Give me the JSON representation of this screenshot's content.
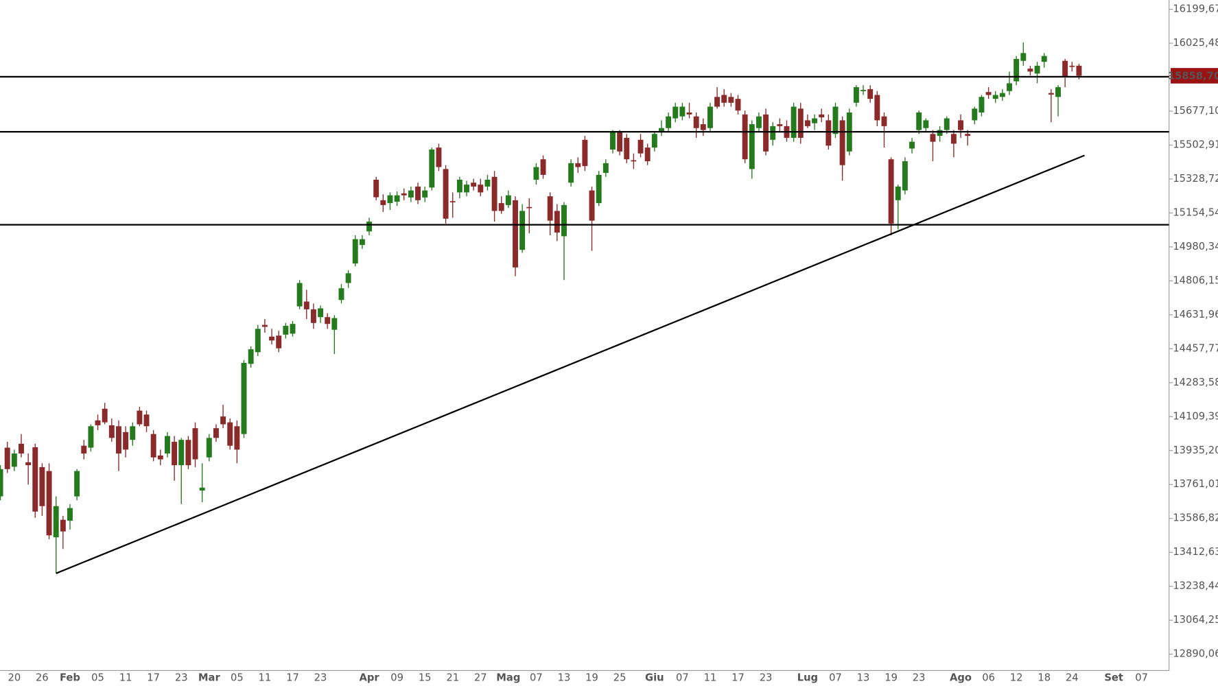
{
  "chart_data": {
    "type": "candlestick",
    "categories": [
      null,
      null,
      "20",
      null,
      null,
      null,
      "26",
      null,
      null,
      null,
      "Feb",
      null,
      null,
      null,
      "05",
      null,
      null,
      null,
      "11",
      null,
      null,
      null,
      "17",
      null,
      null,
      null,
      "23",
      null,
      null,
      null,
      "Mar",
      null,
      null,
      null,
      "05",
      null,
      null,
      null,
      "11",
      null,
      null,
      null,
      "17",
      null,
      null,
      null,
      "23",
      null,
      null,
      null,
      null,
      null,
      null,
      "Apr",
      null,
      null,
      null,
      "09",
      null,
      null,
      null,
      "15",
      null,
      null,
      null,
      "21",
      null,
      null,
      null,
      "27",
      null,
      null,
      null,
      "Mag",
      null,
      null,
      null,
      "07",
      null,
      null,
      null,
      "13",
      null,
      null,
      null,
      "19",
      null,
      null,
      null,
      "25",
      null,
      null,
      null,
      null,
      "Giu",
      null,
      null,
      null,
      "07",
      null,
      null,
      null,
      "11",
      null,
      null,
      null,
      "17",
      null,
      null,
      null,
      "23",
      null,
      null,
      null,
      null,
      null,
      "Lug",
      null,
      null,
      null,
      "07",
      null,
      null,
      null,
      "13",
      null,
      null,
      null,
      "19",
      null,
      null,
      null,
      "23",
      null,
      null,
      null,
      null,
      null,
      "Ago",
      null,
      null,
      null,
      "06",
      null,
      null,
      null,
      "12",
      null,
      null,
      null,
      "18",
      null,
      null,
      null,
      "24",
      null,
      null,
      null,
      null,
      null,
      "Set",
      null,
      null,
      null,
      "07",
      null,
      null,
      null
    ],
    "open": [
      13700,
      13950,
      13852,
      13970,
      13875,
      13952,
      13850,
      13830,
      13490,
      13580,
      13575,
      13700,
      13960,
      13950,
      14090,
      14150,
      14065,
      14060,
      14030,
      13990,
      14140,
      14120,
      14020,
      13910,
      13920,
      13980,
      13860,
      13990,
      14050,
      13730,
      13900,
      14050,
      14110,
      14080,
      14060,
      14020,
      14380,
      14440,
      14580,
      14520,
      14525,
      14530,
      14535,
      14675,
      14700,
      14660,
      14620,
      14620,
      14555,
      14708,
      14795,
      14895,
      14990,
      15060,
      15325,
      15220,
      15205,
      15212,
      15255,
      15234,
      15290,
      15234,
      15285,
      15490,
      15380,
      15215,
      15260,
      15260,
      15310,
      15300,
      15290,
      15340,
      15205,
      15195,
      15220,
      14965,
      15185,
      15325,
      15430,
      15240,
      15165,
      15035,
      15310,
      15410,
      15530,
      15270,
      15205,
      15360,
      15480,
      15570,
      15540,
      15425,
      15530,
      15490,
      15490,
      15570,
      15590,
      15640,
      15650,
      15670,
      15650,
      15610,
      15590,
      15750,
      15760,
      15750,
      15740,
      15660,
      15380,
      15590,
      15660,
      15530,
      15610,
      15600,
      15540,
      15690,
      15630,
      15615,
      15660,
      15630,
      15560,
      15630,
      15470,
      15720,
      15780,
      15790,
      15760,
      15650,
      15430,
      15220,
      15270,
      15485,
      15580,
      15590,
      15560,
      15550,
      15580,
      15560,
      15630,
      15560,
      15630,
      15670,
      15775,
      15740,
      15750,
      15780,
      15830,
      15935,
      15895,
      15870,
      15930,
      15770,
      15750,
      15935,
      15910,
      15910,
      null,
      null,
      null,
      null,
      null,
      null,
      null,
      null,
      null,
      null,
      null,
      null
    ],
    "high": [
      13860,
      13980,
      13940,
      14020,
      13920,
      13970,
      13870,
      13870,
      13700,
      13600,
      13660,
      13840,
      13990,
      14070,
      14120,
      14180,
      14100,
      14090,
      14060,
      14080,
      14160,
      14140,
      14040,
      13940,
      14030,
      14010,
      14000,
      14010,
      14080,
      13870,
      14020,
      14070,
      14170,
      14100,
      14090,
      14400,
      14470,
      14580,
      14610,
      14560,
      14550,
      14590,
      14600,
      14810,
      14760,
      14690,
      14680,
      14640,
      14630,
      14790,
      14860,
      15040,
      15040,
      15130,
      15340,
      15250,
      15260,
      15265,
      15280,
      15290,
      15310,
      15290,
      15490,
      15510,
      15400,
      15260,
      15340,
      15320,
      15330,
      15330,
      15350,
      15370,
      15240,
      15270,
      15240,
      15200,
      15230,
      15410,
      15450,
      15260,
      15200,
      15210,
      15430,
      15440,
      15550,
      15290,
      15370,
      15430,
      15580,
      15580,
      15560,
      15460,
      15560,
      15510,
      15570,
      15630,
      15670,
      15720,
      15720,
      15720,
      15670,
      15640,
      15720,
      15800,
      15790,
      15770,
      15760,
      15680,
      15630,
      15670,
      15690,
      15620,
      15640,
      15630,
      15720,
      15720,
      15660,
      15660,
      15690,
      15660,
      15720,
      15650,
      15690,
      15810,
      15810,
      15810,
      15780,
      15670,
      15440,
      15300,
      15440,
      15540,
      15680,
      15640,
      15580,
      15600,
      15650,
      15580,
      15660,
      15580,
      15700,
      15760,
      15800,
      15780,
      15790,
      15880,
      15960,
      16030,
      15910,
      15930,
      15975,
      15790,
      15810,
      15945,
      15930,
      15920,
      null,
      null,
      null,
      null,
      null,
      null,
      null,
      null,
      null,
      null,
      null,
      null
    ],
    "low": [
      13680,
      13820,
      13830,
      13900,
      13760,
      13590,
      13600,
      13480,
      13305,
      13430,
      13530,
      13680,
      13890,
      13930,
      14040,
      14070,
      13980,
      13830,
      13900,
      13960,
      14060,
      14030,
      13880,
      13860,
      13900,
      13780,
      13660,
      13840,
      13850,
      13670,
      13880,
      13980,
      14050,
      13940,
      13870,
      14000,
      14360,
      14420,
      14540,
      14480,
      14440,
      14510,
      14520,
      14660,
      14610,
      14560,
      14590,
      14560,
      14430,
      14690,
      14770,
      14880,
      14970,
      15040,
      15220,
      15160,
      15170,
      15190,
      15220,
      15210,
      15200,
      15210,
      15270,
      15370,
      15100,
      15130,
      15230,
      15240,
      15270,
      15240,
      15270,
      15110,
      15150,
      15180,
      14830,
      14950,
      15050,
      15300,
      15330,
      15040,
      15010,
      14810,
      15290,
      15360,
      15370,
      14960,
      15190,
      15340,
      15460,
      15450,
      15410,
      15380,
      15440,
      15400,
      15470,
      15550,
      15570,
      15620,
      15630,
      15640,
      15540,
      15550,
      15570,
      15690,
      15700,
      15700,
      15660,
      15410,
      15330,
      15570,
      15450,
      15500,
      15570,
      15520,
      15520,
      15510,
      15590,
      15580,
      15620,
      15480,
      15540,
      15320,
      15450,
      15700,
      15760,
      15720,
      15600,
      15490,
      15040,
      15070,
      15250,
      15460,
      15560,
      15570,
      15420,
      15520,
      15560,
      15440,
      15540,
      15500,
      15610,
      15650,
      15740,
      15720,
      15730,
      15760,
      15810,
      15910,
      15860,
      15820,
      15900,
      15620,
      15650,
      15800,
      15880,
      15840,
      null,
      null,
      null,
      null,
      null,
      null,
      null,
      null,
      null,
      null,
      null,
      null
    ],
    "close": [
      13840,
      13840,
      13920,
      13920,
      13860,
      13622,
      13650,
      13500,
      13650,
      13520,
      13640,
      13830,
      13920,
      14060,
      14065,
      14080,
      14000,
      13920,
      13940,
      14060,
      14070,
      14060,
      13900,
      13890,
      14010,
      13860,
      13990,
      13860,
      13890,
      13745,
      14000,
      14000,
      14070,
      13960,
      13940,
      14385,
      14455,
      14560,
      14570,
      14500,
      14460,
      14575,
      14585,
      14795,
      14660,
      14590,
      14665,
      14585,
      14615,
      14768,
      14845,
      15020,
      15020,
      15110,
      15235,
      15195,
      15245,
      15245,
      15245,
      15270,
      15220,
      15270,
      15480,
      15390,
      15125,
      15210,
      15325,
      15300,
      15290,
      15260,
      15325,
      15165,
      15165,
      15245,
      14875,
      15165,
      15180,
      15390,
      15350,
      15115,
      15054,
      15195,
      15410,
      15390,
      15395,
      15115,
      15350,
      15410,
      15570,
      15470,
      15430,
      15420,
      15460,
      15420,
      15560,
      15590,
      15650,
      15700,
      15700,
      15660,
      15590,
      15580,
      15700,
      15700,
      15720,
      15720,
      15680,
      15430,
      15610,
      15650,
      15470,
      15600,
      15600,
      15540,
      15700,
      15540,
      15600,
      15640,
      15645,
      15500,
      15700,
      15400,
      15670,
      15800,
      15786,
      15740,
      15630,
      15600,
      15100,
      15290,
      15420,
      15520,
      15670,
      15630,
      15520,
      15580,
      15640,
      15510,
      15580,
      15550,
      15690,
      15750,
      15760,
      15760,
      15770,
      15820,
      15945,
      15975,
      15880,
      15910,
      15960,
      15762,
      15800,
      15855,
      15905,
      15858.7,
      null,
      null,
      null,
      null,
      null,
      null,
      null,
      null,
      null,
      null,
      null,
      null
    ],
    "up_color": "#267a1e",
    "down_color": "#8b2a2a",
    "ylim": [
      12806.4,
      16247.4
    ],
    "yticks": [
      {
        "value": 16199.67,
        "label": "16199,67"
      },
      {
        "value": 16025.48,
        "label": "16025,48"
      },
      {
        "value": 15677.1,
        "label": "15677,10"
      },
      {
        "value": 15502.91,
        "label": "15502,91"
      },
      {
        "value": 15328.72,
        "label": "15328,72"
      },
      {
        "value": 15154.54,
        "label": "15154,54"
      },
      {
        "value": 14980.34,
        "label": "14980,34"
      },
      {
        "value": 14806.15,
        "label": "14806,15"
      },
      {
        "value": 14631.96,
        "label": "14631,96"
      },
      {
        "value": 14457.77,
        "label": "14457,77"
      },
      {
        "value": 14283.58,
        "label": "14283,58"
      },
      {
        "value": 14109.39,
        "label": "14109,39"
      },
      {
        "value": 13935.2,
        "label": "13935,20"
      },
      {
        "value": 13761.01,
        "label": "13761,01"
      },
      {
        "value": 13586.82,
        "label": "13586,82"
      },
      {
        "value": 13412.63,
        "label": "13412,63"
      },
      {
        "value": 13238.44,
        "label": "13238,44"
      },
      {
        "value": 13064.25,
        "label": "13064,25"
      },
      {
        "value": 12890.06,
        "label": "12890,06"
      }
    ],
    "last_price": {
      "value": 15858.7,
      "label": "15858,70",
      "color": "#9b1212"
    },
    "levels": [
      15853.6,
      15571,
      15094
    ],
    "trendline": {
      "x": [
        8,
        155.8
      ],
      "y": [
        13305,
        15450
      ]
    }
  }
}
